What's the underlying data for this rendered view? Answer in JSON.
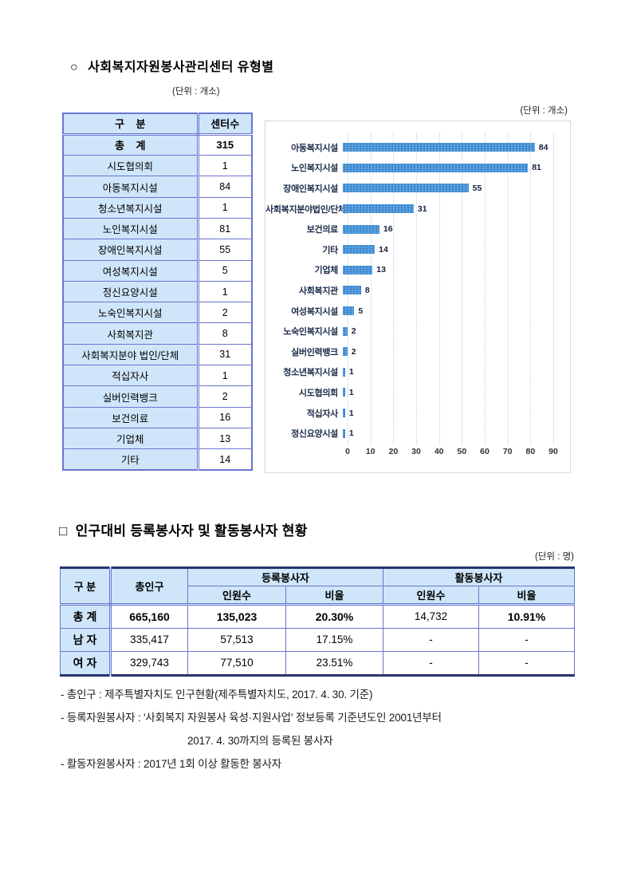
{
  "colors": {
    "table_fill": "#cfe6fa",
    "table_border": "#6a74ce",
    "table_dark_border": "#27346b",
    "bar_fill": "#58a2e4",
    "grid_line": "#bcd2e8"
  },
  "section1": {
    "bullet": "○",
    "title": "사회복지자원봉사관리센터 유형별",
    "unit_label": "(단위 : 개소)",
    "chart_unit_label": "(단위 : 개소)",
    "table": {
      "headers": [
        "구    분",
        "센터수"
      ],
      "rows": [
        [
          "총    계",
          "315"
        ],
        [
          "시도협의회",
          "1"
        ],
        [
          "아동복지시설",
          "84"
        ],
        [
          "청소년복지시설",
          "1"
        ],
        [
          "노인복지시설",
          "81"
        ],
        [
          "장애인복지시설",
          "55"
        ],
        [
          "여성복지시설",
          "5"
        ],
        [
          "정신요양시설",
          "1"
        ],
        [
          "노숙인복지시설",
          "2"
        ],
        [
          "사회복지관",
          "8"
        ],
        [
          "사회복지분야 법인/단체",
          "31"
        ],
        [
          "적십자사",
          "1"
        ],
        [
          "실버인력뱅크",
          "2"
        ],
        [
          "보건의료",
          "16"
        ],
        [
          "기업체",
          "13"
        ],
        [
          "기타",
          "14"
        ]
      ]
    }
  },
  "chart_data": {
    "type": "bar",
    "orientation": "horizontal",
    "title": "",
    "unit": "(단위 : 개소)",
    "categories": [
      "아동복지시설",
      "노인복지시설",
      "장애인복지시설",
      "사회복지분야법인/단체",
      "보건의료",
      "기타",
      "기업체",
      "사회복지관",
      "여성복지시설",
      "노숙인복지시설",
      "실버인력뱅크",
      "청소년복지시설",
      "시도협의회",
      "적십자사",
      "정신요양시설"
    ],
    "values": [
      84,
      81,
      55,
      31,
      16,
      14,
      13,
      8,
      5,
      2,
      2,
      1,
      1,
      1,
      1
    ],
    "xlim": [
      0,
      90
    ],
    "xticks": [
      0,
      10,
      20,
      30,
      40,
      50,
      60,
      70,
      80,
      90
    ],
    "grid": true,
    "legend": false,
    "bar_color": "#58a2e4"
  },
  "section2": {
    "bullet": "□",
    "title": "인구대비 등록봉사자 및 활동봉사자 현황",
    "unit_label": "(단위 : 명)",
    "table": {
      "group_headers": {
        "category": "구 분",
        "population": "총인구",
        "registered": "등록봉사자",
        "active": "활동봉사자"
      },
      "sub_headers": [
        "인원수",
        "비율",
        "인원수",
        "비율"
      ],
      "rows": [
        {
          "cells": [
            "총 계",
            "665,160",
            "135,023",
            "20.30%",
            "14,732",
            "10.91%"
          ],
          "bold": [
            true,
            true,
            true,
            true,
            false,
            true
          ]
        },
        {
          "cells": [
            "남 자",
            "335,417",
            "57,513",
            "17.15%",
            "-",
            "-"
          ],
          "bold": [
            true,
            false,
            false,
            false,
            false,
            false
          ]
        },
        {
          "cells": [
            "여 자",
            "329,743",
            "77,510",
            "23.51%",
            "-",
            "-"
          ],
          "bold": [
            true,
            false,
            false,
            false,
            false,
            false
          ]
        }
      ]
    },
    "notes": [
      {
        "text": "- 총인구 : 제주특별자치도 인구현황(제주특별자치도, 2017. 4. 30. 기준)",
        "indent": 0
      },
      {
        "text": "- 등록자원봉사자 : '사회복지 자원봉사 육성·지원사업' 정보등록 기준년도인 2001년부터",
        "indent": 0
      },
      {
        "text": "2017. 4. 30까지의 등록된 봉사자",
        "indent": 1
      },
      {
        "text": "- 활동자원봉사자 : 2017년 1회 이상 활동한 봉사자",
        "indent": 0
      }
    ]
  }
}
